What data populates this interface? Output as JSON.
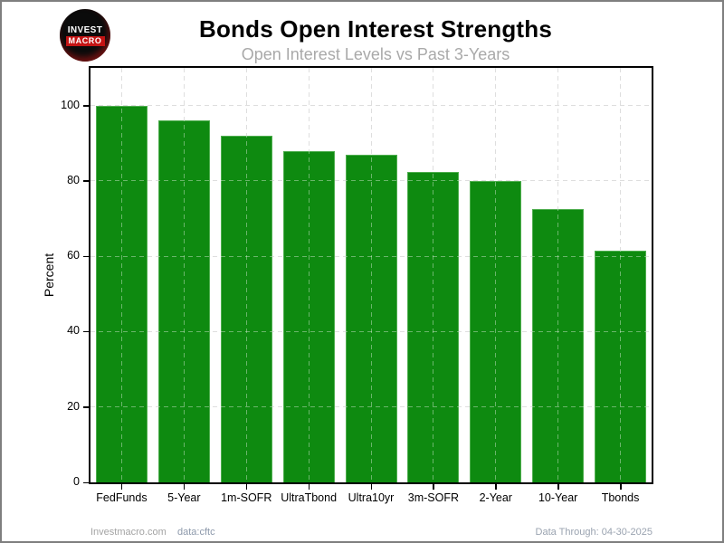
{
  "header": {
    "title": "Bonds Open Interest Strengths",
    "subtitle": "Open Interest Levels vs Past 3-Years",
    "logo": {
      "line1": "INVEST",
      "line2": "MACRO"
    }
  },
  "chart_data": {
    "type": "bar",
    "title": "Bonds Open Interest Strengths",
    "subtitle": "Open Interest Levels vs Past 3-Years",
    "categories": [
      "FedFunds",
      "5-Year",
      "1m-SOFR",
      "UltraTbond",
      "Ultra10yr",
      "3m-SOFR",
      "2-Year",
      "10-Year",
      "Tbonds"
    ],
    "values": [
      100,
      96,
      92,
      88,
      87,
      82.5,
      80,
      72.5,
      61.5
    ],
    "xlabel": "",
    "ylabel": "Percent",
    "ylim": [
      0,
      110
    ],
    "yticks": [
      0,
      20,
      40,
      60,
      80,
      100
    ],
    "grid": "dashed horizontal and vertical gridlines, drawn over bars",
    "legend": "none",
    "bar_unit": "percent of 3-year range"
  },
  "footer": {
    "site": "Investmacro.com",
    "source": "data:cftc",
    "date": "Data Through: 04-30-2025"
  },
  "colors": {
    "bar_fill": "#0e8a10",
    "bar_edge": "#4fae4f",
    "grid_under": "#c9c9c9",
    "grid_over": "rgba(255,255,255,0.38)",
    "plot_frame": "#000000",
    "title": "#000000",
    "subtitle": "#a9a9a9",
    "outer_border": "#7f7f7f",
    "logo_bg": "#0b0b0b",
    "logo_red": "#c41414",
    "footer_site": "#a3a3a3",
    "footer_source": "#8d99ab",
    "footer_date": "#9aa3b0"
  }
}
